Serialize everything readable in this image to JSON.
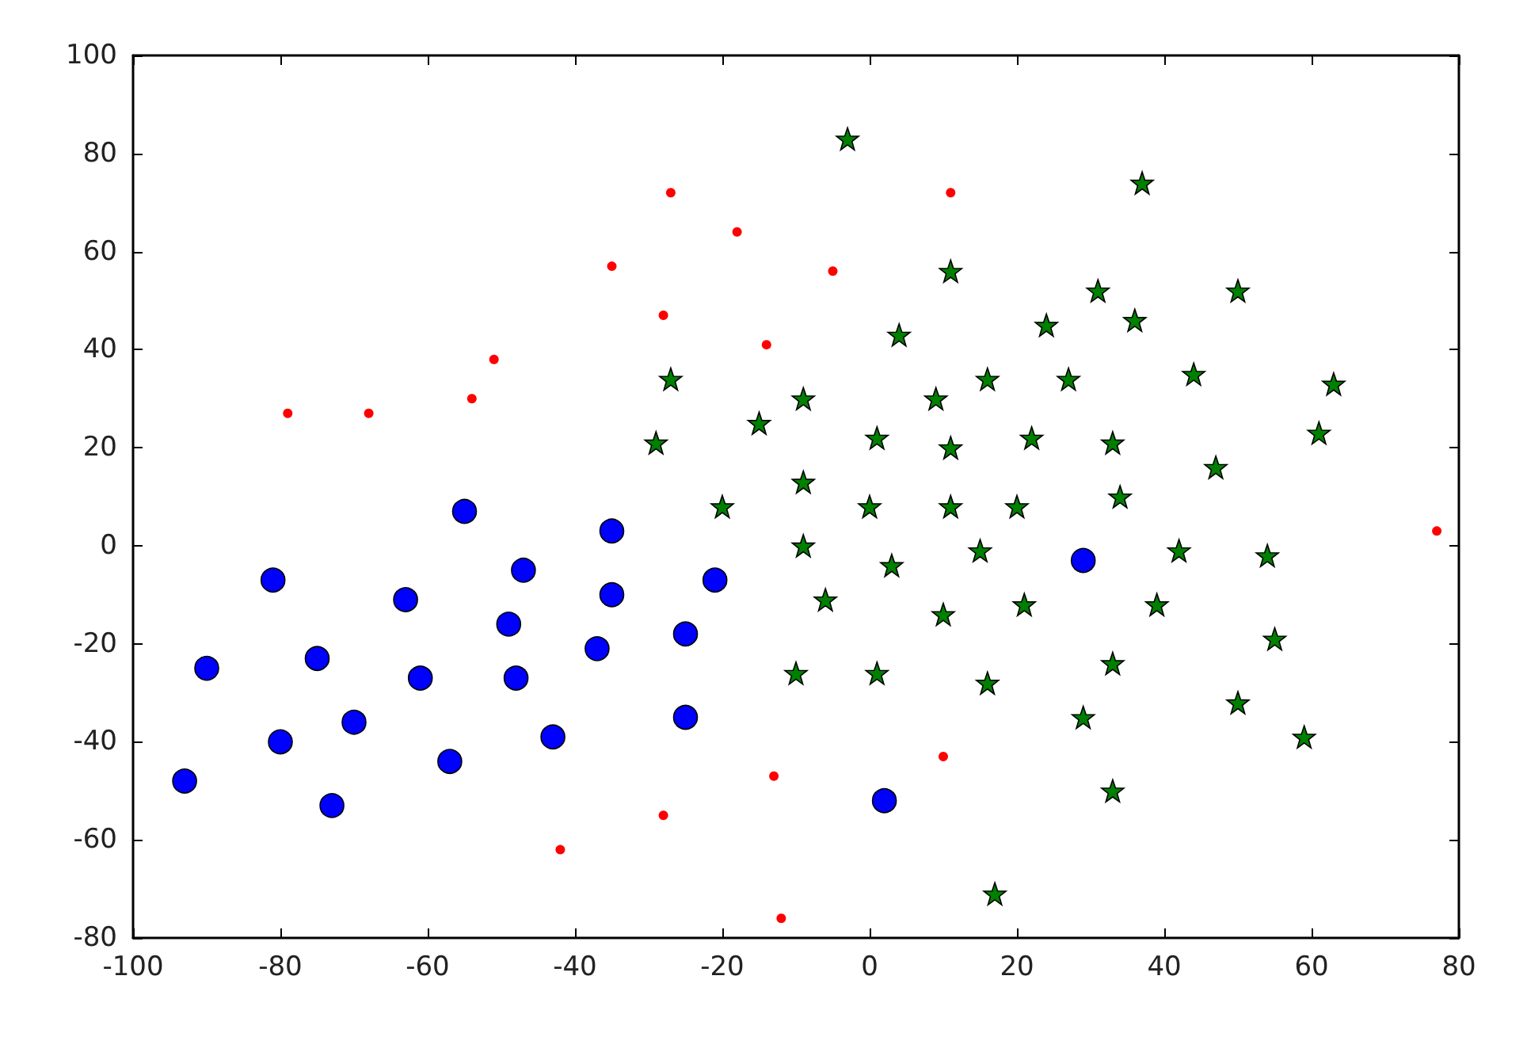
{
  "chart_data": {
    "type": "scatter",
    "xlim": [
      -100,
      80
    ],
    "xticks": [
      -100,
      -80,
      -60,
      -40,
      -20,
      0,
      20,
      40,
      60,
      80
    ],
    "ylim": [
      -80,
      100
    ],
    "yticks": [
      -80,
      -60,
      -40,
      -20,
      0,
      20,
      40,
      60,
      80,
      100
    ],
    "series": [
      {
        "color": "#ff0000",
        "marker": "circle",
        "x": [
          -79,
          -68,
          -54,
          -51,
          -35,
          -27,
          -18,
          -28,
          -5,
          -14,
          11,
          -42,
          -28,
          -13,
          10,
          -12,
          77
        ],
        "values": [
          27,
          27,
          30,
          38,
          57,
          72,
          64,
          47,
          56,
          41,
          72,
          -62,
          -55,
          -47,
          -43,
          -76,
          3
        ]
      },
      {
        "color": "#0000ff",
        "marker": "circle",
        "x": [
          -55,
          -35,
          -47,
          -81,
          -63,
          -35,
          -49,
          -37,
          -90,
          -75,
          -61,
          -48,
          -70,
          -80,
          -43,
          -57,
          -93,
          -73,
          -21,
          -25,
          -25,
          2,
          29
        ],
        "values": [
          7,
          3,
          -5,
          -7,
          -11,
          -10,
          -16,
          -21,
          -25,
          -23,
          -27,
          -27,
          -36,
          -40,
          -39,
          -44,
          -48,
          -53,
          -7,
          -18,
          -35,
          -52,
          -3
        ]
      },
      {
        "color": "#008000",
        "marker": "star",
        "x": [
          -3,
          11,
          4,
          24,
          -27,
          -9,
          9,
          16,
          27,
          -15,
          -29,
          1,
          11,
          22,
          -9,
          -20,
          0,
          11,
          20,
          -9,
          3,
          15,
          -6,
          10,
          21,
          -10,
          1,
          16,
          17,
          37,
          31,
          50,
          36,
          44,
          63,
          61,
          33,
          47,
          34,
          42,
          54,
          39,
          55,
          33,
          50,
          29,
          59,
          33
        ],
        "values": [
          83,
          56,
          43,
          45,
          34,
          30,
          30,
          34,
          34,
          25,
          21,
          22,
          20,
          22,
          13,
          8,
          8,
          8,
          8,
          0,
          -4,
          -1,
          -11,
          -14,
          -12,
          -26,
          -26,
          -28,
          -71,
          74,
          52,
          52,
          46,
          35,
          33,
          23,
          21,
          16,
          10,
          -1,
          -2,
          -12,
          -19,
          -24,
          -32,
          -35,
          -39,
          -50
        ]
      }
    ]
  }
}
